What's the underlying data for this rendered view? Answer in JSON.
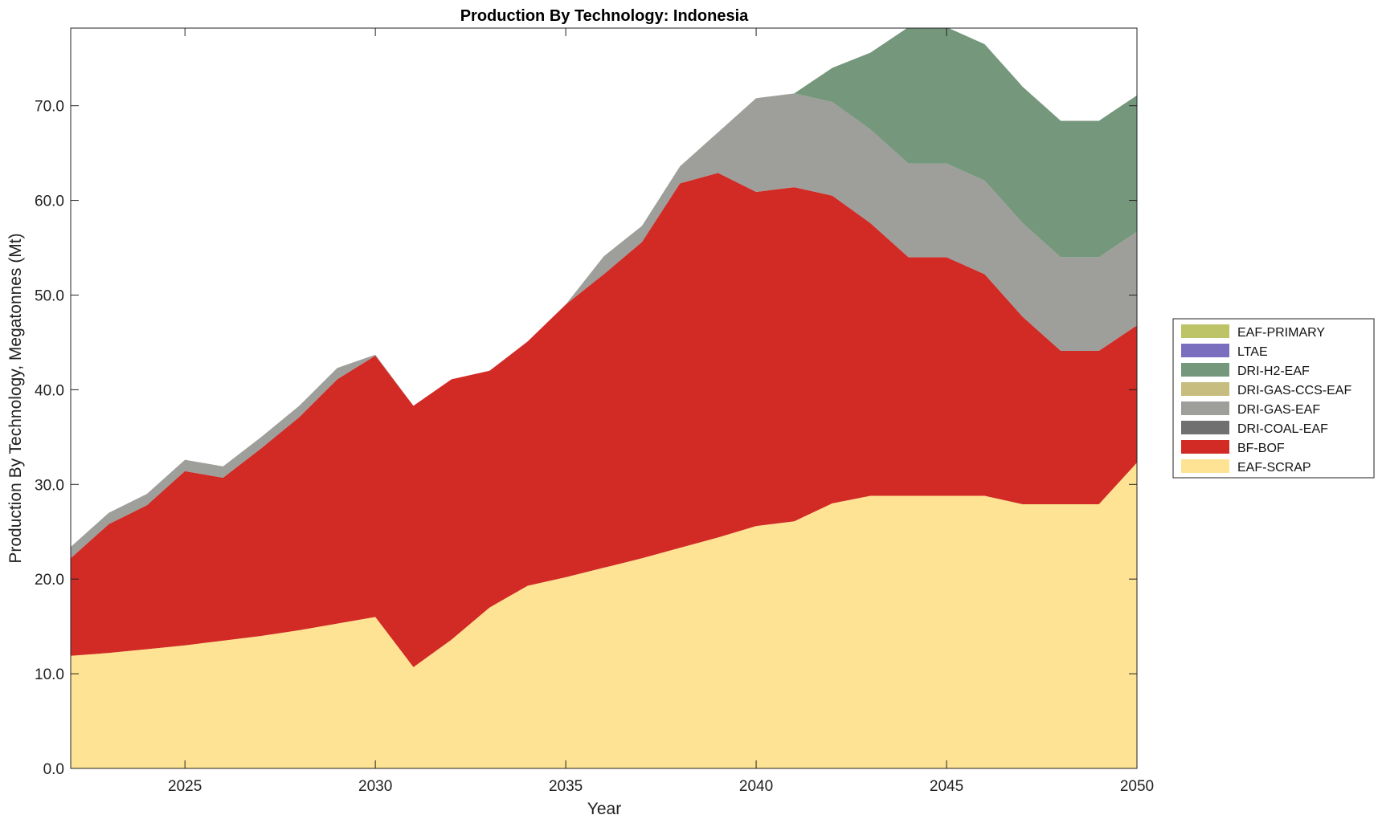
{
  "chart_data": {
    "type": "area",
    "title": "Production By Technology: Indonesia",
    "xlabel": "Year",
    "ylabel": "Production By Technology, Megatonnes (Mt)",
    "xlim": [
      2022,
      2050
    ],
    "ylim": [
      0,
      78.2
    ],
    "x_ticks": [
      2025,
      2030,
      2035,
      2040,
      2045,
      2050
    ],
    "x_tick_labels": [
      "2025",
      "2030",
      "2035",
      "2040",
      "2045",
      "2050"
    ],
    "y_ticks": [
      0,
      10,
      20,
      30,
      40,
      50,
      60,
      70
    ],
    "y_tick_labels": [
      "0.0",
      "10.0",
      "20.0",
      "30.0",
      "40.0",
      "50.0",
      "60.0",
      "70.0"
    ],
    "stacked": true,
    "grid": false,
    "legend_position": "right",
    "x": [
      2022,
      2023,
      2024,
      2025,
      2026,
      2027,
      2028,
      2029,
      2030,
      2031,
      2032,
      2033,
      2034,
      2035,
      2036,
      2037,
      2038,
      2039,
      2040,
      2041,
      2042,
      2043,
      2044,
      2045,
      2046,
      2047,
      2048,
      2049,
      2050
    ],
    "series": [
      {
        "name": "EAF-SCRAP",
        "color": "#fde393",
        "values": [
          11.9,
          12.2,
          12.6,
          13.0,
          13.5,
          14.0,
          14.6,
          15.3,
          16.0,
          10.7,
          13.6,
          17.0,
          19.3,
          20.2,
          21.2,
          22.2,
          23.3,
          24.4,
          25.6,
          26.1,
          28.0,
          28.8,
          28.8,
          28.8,
          28.8,
          27.9,
          27.9,
          27.9,
          32.3
        ]
      },
      {
        "name": "BF-BOF",
        "color": "#d22a24",
        "values": [
          10.3,
          13.6,
          15.2,
          18.4,
          17.2,
          19.8,
          22.5,
          25.8,
          27.6,
          27.6,
          27.5,
          25.0,
          25.8,
          28.8,
          31.0,
          33.4,
          38.5,
          38.5,
          35.3,
          35.3,
          32.5,
          28.8,
          25.2,
          25.2,
          23.4,
          19.8,
          16.2,
          16.2,
          14.5
        ]
      },
      {
        "name": "DRI-COAL-EAF",
        "color": "#707070",
        "values": [
          0,
          0,
          0,
          0,
          0,
          0,
          0,
          0,
          0,
          0,
          0,
          0,
          0,
          0,
          0,
          0,
          0,
          0,
          0,
          0,
          0,
          0,
          0,
          0,
          0,
          0,
          0,
          0,
          0
        ]
      },
      {
        "name": "DRI-GAS-EAF",
        "color": "#9e9e9b",
        "values": [
          1.2,
          1.2,
          1.2,
          1.2,
          1.2,
          1.2,
          1.2,
          1.2,
          0.1,
          0,
          0,
          0,
          0,
          0,
          1.9,
          1.7,
          1.8,
          4.3,
          9.9,
          9.9,
          9.9,
          9.9,
          9.9,
          9.9,
          9.9,
          9.9,
          9.9,
          9.9,
          9.9
        ]
      },
      {
        "name": "DRI-GAS-CCS-EAF",
        "color": "#c6bd7f",
        "values": [
          0,
          0,
          0,
          0,
          0,
          0,
          0,
          0,
          0,
          0,
          0,
          0,
          0,
          0,
          0,
          0,
          0,
          0,
          0,
          0,
          0,
          0,
          0,
          0,
          0,
          0,
          0,
          0,
          0
        ]
      },
      {
        "name": "DRI-H2-EAF",
        "color": "#75977b",
        "values": [
          0,
          0,
          0,
          0,
          0,
          0,
          0,
          0,
          0,
          0,
          0,
          0,
          0,
          0,
          0,
          0,
          0,
          0,
          0,
          0,
          3.6,
          8.1,
          14.4,
          14.4,
          14.4,
          14.4,
          14.4,
          14.4,
          14.4
        ]
      },
      {
        "name": "LTAE",
        "color": "#7a6fbf",
        "values": [
          0,
          0,
          0,
          0,
          0,
          0,
          0,
          0,
          0,
          0,
          0,
          0,
          0,
          0,
          0,
          0,
          0,
          0,
          0,
          0,
          0,
          0,
          0,
          0,
          0,
          0,
          0,
          0,
          0
        ]
      },
      {
        "name": "EAF-PRIMARY",
        "color": "#bcc467",
        "values": [
          0,
          0,
          0,
          0,
          0,
          0,
          0,
          0,
          0,
          0,
          0,
          0,
          0,
          0,
          0,
          0,
          0,
          0,
          0,
          0,
          0,
          0,
          0,
          0,
          0,
          0,
          0,
          0,
          0
        ]
      }
    ],
    "legend_order": [
      "EAF-PRIMARY",
      "LTAE",
      "DRI-H2-EAF",
      "DRI-GAS-CCS-EAF",
      "DRI-GAS-EAF",
      "DRI-COAL-EAF",
      "BF-BOF",
      "EAF-SCRAP"
    ]
  }
}
